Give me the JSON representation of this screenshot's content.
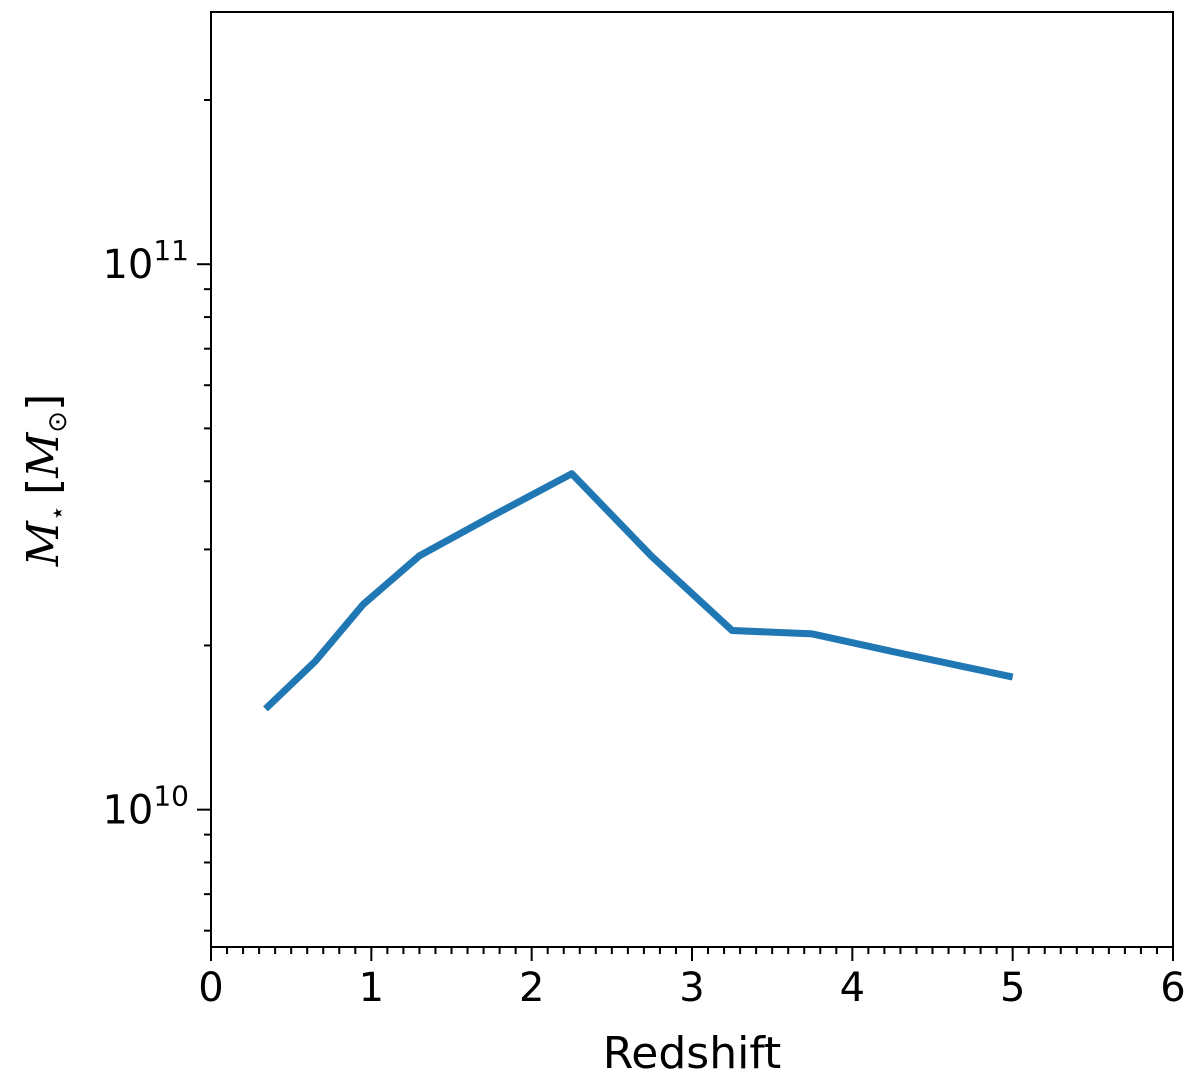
{
  "chart_data": {
    "type": "line",
    "xlabel": "Redshift",
    "ylabel": "M⋆ [M⊙]",
    "ylabel_parts": {
      "symbol": "M",
      "symbol_sub": "⋆",
      "open": "[",
      "unit": "M",
      "unit_sub": "⊙",
      "close": "]"
    },
    "xlim": [
      0,
      6
    ],
    "ylim": [
      5600000000.0,
      290000000000.0
    ],
    "yscale": "log",
    "grid": false,
    "x_ticks": [
      {
        "value": 0,
        "label": "0"
      },
      {
        "value": 1,
        "label": "1"
      },
      {
        "value": 2,
        "label": "2"
      },
      {
        "value": 3,
        "label": "3"
      },
      {
        "value": 4,
        "label": "4"
      },
      {
        "value": 5,
        "label": "5"
      },
      {
        "value": 6,
        "label": "6"
      }
    ],
    "y_ticks": [
      {
        "value": 10000000000.0,
        "base": "10",
        "exp": "10"
      },
      {
        "value": 100000000000.0,
        "base": "10",
        "exp": "11"
      }
    ],
    "series": [
      {
        "color": "#1f77b4",
        "x": [
          0.34,
          0.65,
          0.95,
          1.3,
          1.75,
          2.25,
          2.75,
          3.25,
          3.75,
          4.25,
          5.0
        ],
        "y": [
          15300000000.0,
          18700000000.0,
          23800000000.0,
          29200000000.0,
          34500000000.0,
          41300000000.0,
          29100000000.0,
          21300000000.0,
          21000000000.0,
          19500000000.0,
          17500000000.0
        ]
      }
    ]
  }
}
